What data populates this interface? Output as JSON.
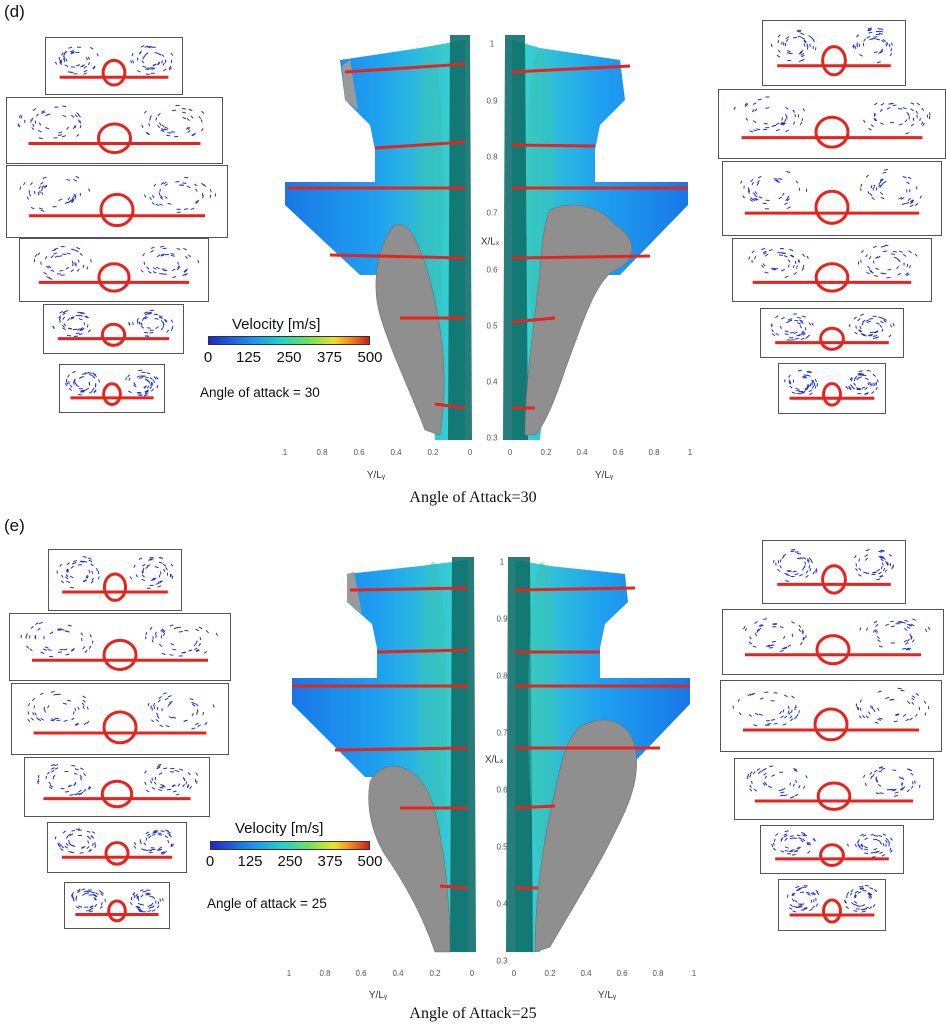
{
  "panels": [
    {
      "label": "(d)",
      "caption": "Angle of Attack=30",
      "note": "Angle of attack = 30",
      "legend": {
        "title": "Velocity [m/s]",
        "ticks": [
          "0",
          "125",
          "250",
          "375",
          "500"
        ]
      },
      "axes": {
        "x_ticks_left": [
          "1",
          "0.8",
          "0.6",
          "0.4",
          "0.2",
          "0"
        ],
        "x_ticks_right": [
          "0",
          "0.2",
          "0.4",
          "0.6",
          "0.8",
          "1"
        ],
        "y_ticks": [
          "1",
          "0.9",
          "0.8",
          "0.7",
          "0.6",
          "0.5",
          "0.4",
          "0.3"
        ],
        "xlabel_left": "Y/Lᵧ",
        "xlabel_right": "Y/Lᵧ",
        "ylabel": "X/Lₓ"
      }
    },
    {
      "label": "(e)",
      "caption": "Angle of Attack=25",
      "note": "Angle of attack = 25",
      "legend": {
        "title": "Velocity [m/s]",
        "ticks": [
          "0",
          "125",
          "250",
          "375",
          "500"
        ]
      },
      "axes": {
        "x_ticks_left": [
          "1",
          "0.8",
          "0.6",
          "0.4",
          "0.2",
          "0"
        ],
        "x_ticks_right": [
          "0",
          "0.2",
          "0.4",
          "0.6",
          "0.8",
          "1"
        ],
        "y_ticks": [
          "1",
          "0.9",
          "0.8",
          "0.7",
          "0.6",
          "0.5",
          "0.4",
          "0.3"
        ],
        "xlabel_left": "Y/Lᵧ",
        "xlabel_right": "Y/Lᵧ",
        "ylabel": "X/Lₓ"
      }
    }
  ],
  "colors": {
    "surface_cut": "#e8231e",
    "vectors": "#1a2fd8",
    "vortex_isosurface": "#8f8f8f",
    "surface_flow_low": "#1e8cf0",
    "surface_flow_high": "#3ce0c8"
  }
}
